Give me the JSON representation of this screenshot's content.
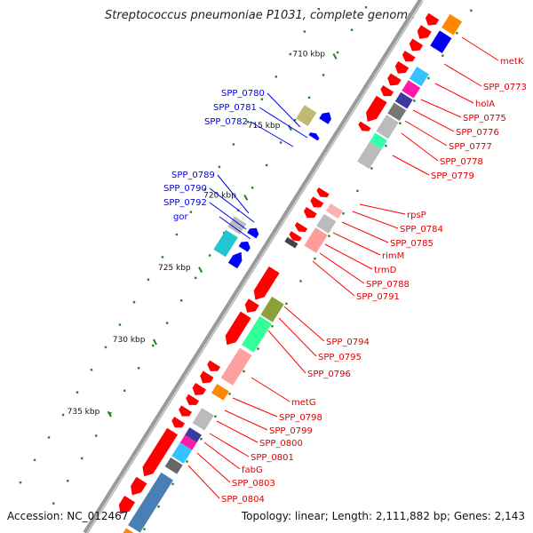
{
  "title": "Streptococcus pneumoniae P1031, complete genome",
  "footer": {
    "accession": "Accession: NC_012467",
    "summary": "Topology: linear; Length: 2,111,882 bp; Genes: 2,143"
  },
  "ticks": [
    "710 kbp",
    "715 kbp",
    "720 kbp",
    "725 kbp",
    "730 kbp",
    "735 kbp"
  ],
  "left_labels": [
    "SPP_0780",
    "SPP_0781",
    "SPP_0782",
    "SPP_0789",
    "SPP_0790",
    "SPP_0792",
    "gor"
  ],
  "right_labels": [
    "metK",
    "SPP_0773",
    "holA",
    "SPP_0775",
    "SPP_0776",
    "SPP_0777",
    "SPP_0778",
    "SPP_0779",
    "rpsP",
    "SPP_0784",
    "SPP_0785",
    "rimM",
    "trmD",
    "SPP_0788",
    "SPP_0791",
    "SPP_0794",
    "SPP_0795",
    "SPP_0796",
    "metG",
    "SPP_0798",
    "SPP_0799",
    "SPP_0800",
    "SPP_0801",
    "fabG",
    "SPP_0803",
    "SPP_0804"
  ],
  "colors": {
    "forward": "#ff0000",
    "reverse": "#0000ff",
    "backbone": "#888888"
  }
}
